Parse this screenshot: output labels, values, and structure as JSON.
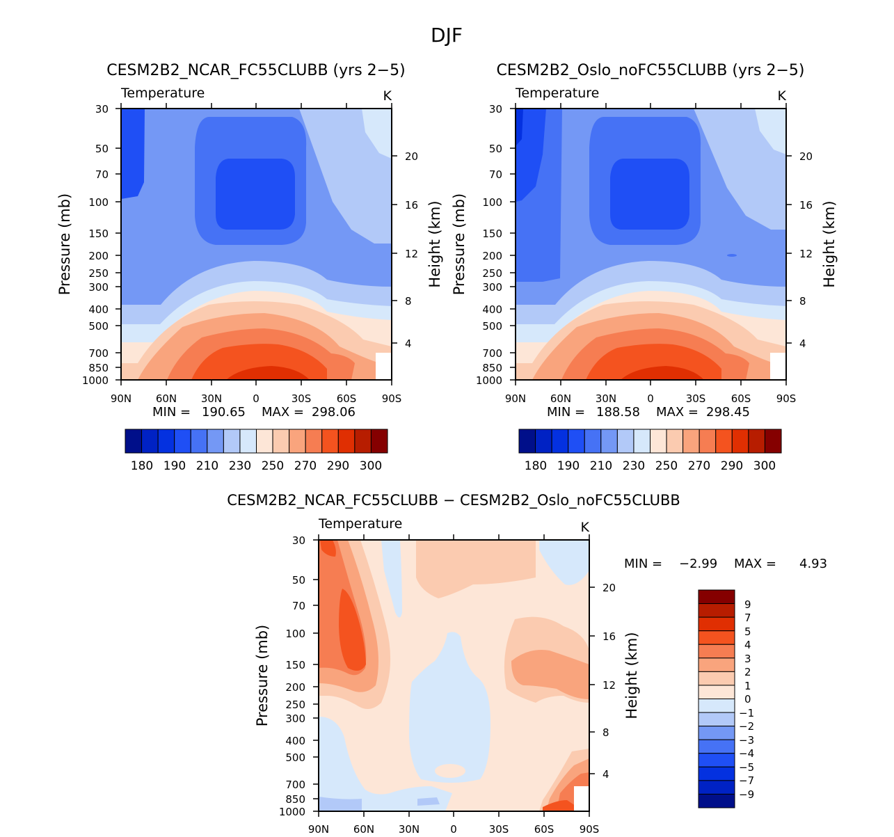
{
  "figure_title": "DJF",
  "colors": {
    "panel_palette": [
      "#000f8a",
      "#0022c4",
      "#0431e0",
      "#1f4ff5",
      "#4672f5",
      "#7498f5",
      "#b2c9f8",
      "#d6e8fb",
      "#fde6d7",
      "#fbcbb0",
      "#f9a47d",
      "#f67d52",
      "#f4531f",
      "#e02f02",
      "#b71d00",
      "#850000"
    ],
    "diff_palette": [
      "#000f8a",
      "#0022c4",
      "#0431e0",
      "#1f4ff5",
      "#4672f5",
      "#7498f5",
      "#b2c9f8",
      "#d6e8fb",
      "#fde6d7",
      "#fbcbb0",
      "#f9a47d",
      "#f67d52",
      "#f4531f",
      "#e02f02",
      "#b71d00",
      "#850000"
    ]
  },
  "chart_data": [
    {
      "type": "contour",
      "id": "ncar",
      "title": "CESM2B2_NCAR_FC55CLUBB (yrs 2−5)",
      "variable": "Temperature",
      "units": "K",
      "ylabel": "Pressure (mb)",
      "y2label": "Height (km)",
      "x_ticks": [
        "90N",
        "60N",
        "30N",
        "0",
        "30S",
        "60S",
        "90S"
      ],
      "pressure_ticks": [
        "30",
        "50",
        "70",
        "100",
        "150",
        "200",
        "250",
        "300",
        "400",
        "500",
        "700",
        "850",
        "1000"
      ],
      "height_ticks": [
        "4",
        "8",
        "12",
        "16",
        "20"
      ],
      "min_label": "MIN = ",
      "min_value": "190.65",
      "max_label": "MAX = ",
      "max_value": "298.06",
      "levels": [
        180,
        190,
        200,
        210,
        220,
        230,
        240,
        250,
        260,
        270,
        280,
        290,
        300
      ],
      "colorbar_labels": [
        "180",
        "190",
        "210",
        "230",
        "250",
        "270",
        "290",
        "300"
      ]
    },
    {
      "type": "contour",
      "id": "oslo",
      "title": "CESM2B2_Oslo_noFC55CLUBB (yrs 2−5)",
      "variable": "Temperature",
      "units": "K",
      "ylabel": "Pressure (mb)",
      "y2label": "Height (km)",
      "x_ticks": [
        "90N",
        "60N",
        "30N",
        "0",
        "30S",
        "60S",
        "90S"
      ],
      "pressure_ticks": [
        "30",
        "50",
        "70",
        "100",
        "150",
        "200",
        "250",
        "300",
        "400",
        "500",
        "700",
        "850",
        "1000"
      ],
      "height_ticks": [
        "4",
        "8",
        "12",
        "16",
        "20"
      ],
      "min_label": "MIN = ",
      "min_value": "188.58",
      "max_label": "MAX = ",
      "max_value": "298.45",
      "levels": [
        180,
        190,
        200,
        210,
        220,
        230,
        240,
        250,
        260,
        270,
        280,
        290,
        300
      ],
      "colorbar_labels": [
        "180",
        "190",
        "210",
        "230",
        "250",
        "270",
        "290",
        "300"
      ]
    },
    {
      "type": "contour",
      "id": "diff",
      "title": "CESM2B2_NCAR_FC55CLUBB − CESM2B2_Oslo_noFC55CLUBB",
      "variable": "Temperature",
      "units": "K",
      "ylabel": "Pressure (mb)",
      "y2label": "Height (km)",
      "x_ticks": [
        "90N",
        "60N",
        "30N",
        "0",
        "30S",
        "60S",
        "90S"
      ],
      "pressure_ticks": [
        "30",
        "50",
        "70",
        "100",
        "150",
        "200",
        "250",
        "300",
        "400",
        "500",
        "700",
        "850",
        "1000"
      ],
      "height_ticks": [
        "4",
        "8",
        "12",
        "16",
        "20"
      ],
      "min_label": "MIN = ",
      "min_value": "−2.99",
      "max_label": "MAX = ",
      "max_value": "4.93",
      "levels": [
        -9,
        -7,
        -5,
        -4,
        -3,
        -2,
        -1,
        0,
        1,
        2,
        3,
        4,
        5,
        7,
        9
      ],
      "colorbar_labels": [
        "9",
        "7",
        "5",
        "4",
        "3",
        "2",
        "1",
        "0",
        "−1",
        "−2",
        "−3",
        "−4",
        "−5",
        "−7",
        "−9"
      ]
    }
  ]
}
